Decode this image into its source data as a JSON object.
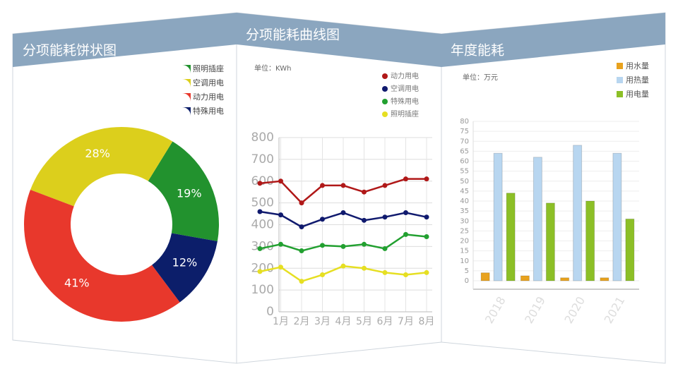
{
  "chart_data": [
    {
      "type": "pie",
      "title": "分项能耗饼状图",
      "categories": [
        "照明插座",
        "空调用电",
        "动力用电",
        "特殊用电"
      ],
      "values": [
        19,
        28,
        41,
        12
      ],
      "value_labels": [
        "19%",
        "28%",
        "41%",
        "12%"
      ],
      "colors": [
        "#22922e",
        "#dccf1c",
        "#e8382c",
        "#0c1e6a"
      ],
      "donut": true
    },
    {
      "type": "line",
      "title": "分项能耗曲线图",
      "subtitle": "单位：KWh",
      "categories": [
        null,
        "1月",
        "2月",
        "3月",
        "4月",
        "5月",
        "6月",
        "7月",
        "8月"
      ],
      "series": [
        {
          "name": "动力用电",
          "color": "#b01818",
          "values": [
            590,
            600,
            500,
            580,
            580,
            550,
            580,
            610,
            610
          ]
        },
        {
          "name": "空调用电",
          "color": "#101a6e",
          "values": [
            460,
            445,
            390,
            425,
            455,
            420,
            435,
            455,
            435
          ]
        },
        {
          "name": "特殊用电",
          "color": "#22a030",
          "values": [
            290,
            310,
            280,
            305,
            300,
            310,
            290,
            355,
            345
          ]
        },
        {
          "name": "照明插座",
          "color": "#e6df22",
          "values": [
            185,
            205,
            140,
            170,
            210,
            200,
            180,
            170,
            180
          ]
        }
      ],
      "ylim": [
        0,
        800
      ],
      "yticks": [
        0,
        100,
        200,
        300,
        400,
        500,
        600,
        700,
        800
      ],
      "grid": true
    },
    {
      "type": "bar",
      "title": "年度能耗",
      "subtitle": "单位：万元",
      "categories": [
        "2018",
        "2019",
        "2020",
        "2021"
      ],
      "series": [
        {
          "name": "用水量",
          "color": "#e8a21e",
          "values": [
            4,
            2.5,
            1.5,
            1.5
          ]
        },
        {
          "name": "用热量",
          "color": "#b8d6f0",
          "values": [
            64,
            62,
            68,
            64
          ]
        },
        {
          "name": "用电量",
          "color": "#8cbf26",
          "values": [
            44,
            39,
            40,
            31
          ]
        }
      ],
      "ylim": [
        0,
        80
      ],
      "yticks": [
        0,
        5,
        10,
        15,
        20,
        25,
        30,
        35,
        40,
        45,
        50,
        55,
        60,
        65,
        70,
        75,
        80
      ],
      "grid": true
    }
  ]
}
